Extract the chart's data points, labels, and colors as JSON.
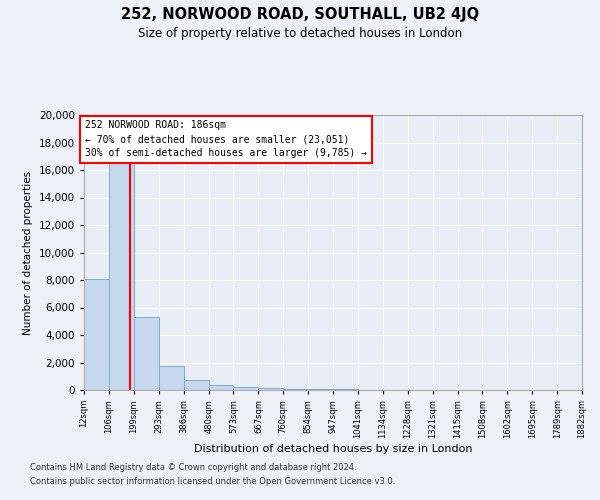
{
  "title": "252, NORWOOD ROAD, SOUTHALL, UB2 4JQ",
  "subtitle": "Size of property relative to detached houses in London",
  "xlabel": "Distribution of detached houses by size in London",
  "ylabel": "Number of detached properties",
  "bin_edges": [
    12,
    106,
    199,
    293,
    386,
    480,
    573,
    667,
    760,
    854,
    947,
    1041,
    1134,
    1228,
    1321,
    1415,
    1508,
    1602,
    1695,
    1789,
    1882
  ],
  "bin_counts": [
    8050,
    16700,
    5300,
    1750,
    700,
    350,
    230,
    150,
    100,
    70,
    40,
    0,
    0,
    0,
    0,
    0,
    0,
    0,
    0,
    0
  ],
  "property_size": 186,
  "bar_color": "#c5d8ee",
  "bar_edge_color": "#7aadd4",
  "line_color": "red",
  "annotation_text": "252 NORWOOD ROAD: 186sqm\n← 70% of detached houses are smaller (23,051)\n30% of semi-detached houses are larger (9,785) →",
  "ylim": [
    0,
    20000
  ],
  "yticks": [
    0,
    2000,
    4000,
    6000,
    8000,
    10000,
    12000,
    14000,
    16000,
    18000,
    20000
  ],
  "footer_line1": "Contains HM Land Registry data © Crown copyright and database right 2024.",
  "footer_line2": "Contains public sector information licensed under the Open Government Licence v3.0.",
  "background_color": "#eef2f8",
  "plot_background": "#e8edf6"
}
